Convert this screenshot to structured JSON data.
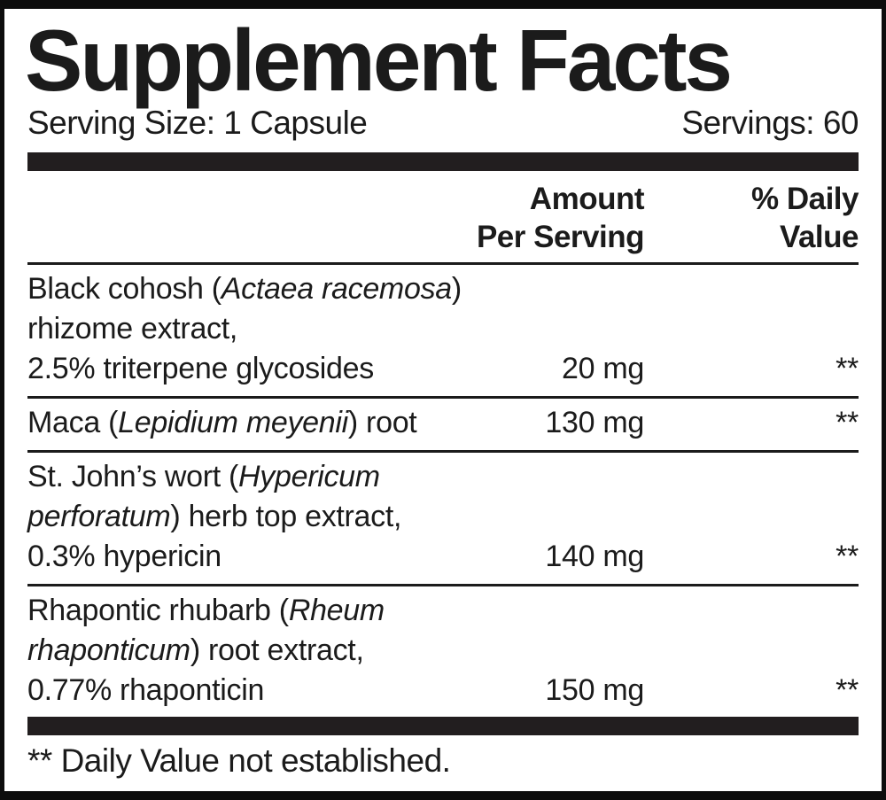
{
  "label": {
    "title": "Supplement Facts",
    "serving_size": "Serving Size: 1 Capsule",
    "servings": "Servings: 60",
    "header": {
      "amount_line1": "Amount",
      "amount_line2": "Per Serving",
      "daily_value_line1": "% Daily",
      "daily_value_line2": "Value"
    },
    "rows": [
      {
        "name_lines": [
          [
            {
              "text": "Black cohosh ("
            },
            {
              "text": "Actaea racemosa",
              "italic": true
            },
            {
              "text": ")"
            }
          ],
          [
            {
              "text": "rhizome extract,"
            }
          ],
          [
            {
              "text": "2.5% triterpene glycosides"
            }
          ]
        ],
        "amount": "20 mg",
        "daily_value": "**"
      },
      {
        "name_lines": [
          [
            {
              "text": "Maca ("
            },
            {
              "text": "Lepidium meyenii",
              "italic": true
            },
            {
              "text": ") root"
            }
          ]
        ],
        "amount": "130 mg",
        "daily_value": "**"
      },
      {
        "name_lines": [
          [
            {
              "text": "St. John’s wort ("
            },
            {
              "text": "Hypericum",
              "italic": true
            }
          ],
          [
            {
              "text": "perforatum",
              "italic": true
            },
            {
              "text": ") herb top extract,"
            }
          ],
          [
            {
              "text": "0.3% hypericin"
            }
          ]
        ],
        "amount": "140 mg",
        "daily_value": "**"
      },
      {
        "name_lines": [
          [
            {
              "text": "Rhapontic rhubarb ("
            },
            {
              "text": "Rheum",
              "italic": true
            }
          ],
          [
            {
              "text": "rhaponticum",
              "italic": true
            },
            {
              "text": ") root extract,"
            }
          ],
          [
            {
              "text": "0.77% rhaponticin"
            }
          ]
        ],
        "amount": "150 mg",
        "daily_value": "**"
      }
    ],
    "footnote": "** Daily Value not established.",
    "colors": {
      "text": "#1b1b1b",
      "bar": "#221e1f",
      "border": "#0d0d0d",
      "background": "#ffffff"
    }
  }
}
